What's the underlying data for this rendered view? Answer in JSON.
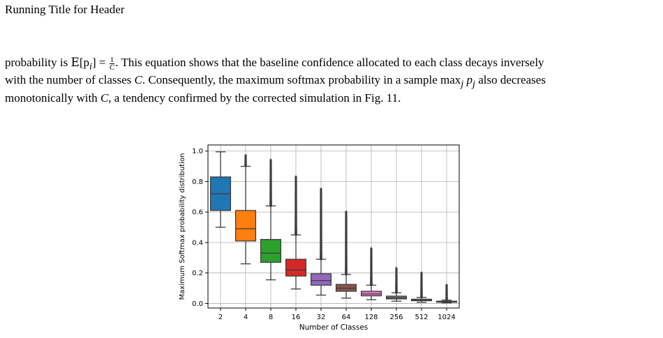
{
  "header": {
    "running_title": "Running Title for Header"
  },
  "paragraph": {
    "l1_prefix": "probability is ",
    "l1_expect": "E",
    "l1_arg": "[p",
    "l1_sub": "i",
    "l1_close": "]",
    "l1_eq": " = ",
    "l1_frac_num": "1",
    "l1_frac_den": "C",
    "l1_suffix": ". This equation shows that the baseline confidence allocated to each class decays inversely",
    "l2_prefix": "with the number of classes ",
    "l2_var": "C",
    "l2_mid": ". Consequently, the maximum softmax probability in a sample ",
    "l2_max": "max",
    "l2_max_sub": "j",
    "l2_p": " p",
    "l2_p_sub": "j",
    "l2_suffix": " also decreases",
    "l3_prefix": "monotonically with ",
    "l3_var": "C",
    "l3_suffix": ", a tendency confirmed by the corrected simulation in Fig. 11."
  },
  "chart_data": {
    "type": "box",
    "xlabel": "Number of Classes",
    "ylabel": "Maximum Softmax probability distribution",
    "ylim": [
      -0.03,
      1.04
    ],
    "yticks": [
      0.0,
      0.2,
      0.4,
      0.6,
      0.8,
      1.0
    ],
    "ytick_labels": [
      "0.0",
      "0.2",
      "0.4",
      "0.6",
      "0.8",
      "1.0"
    ],
    "grid": true,
    "categories": [
      "2",
      "4",
      "8",
      "16",
      "32",
      "64",
      "128",
      "256",
      "512",
      "1024"
    ],
    "boxes": [
      {
        "category": "2",
        "whisker_low": 0.5,
        "q1": 0.61,
        "median": 0.72,
        "q3": 0.83,
        "whisker_high": 0.995,
        "outlier_max": 0.995,
        "color": "#1f77b4"
      },
      {
        "category": "4",
        "whisker_low": 0.26,
        "q1": 0.41,
        "median": 0.49,
        "q3": 0.61,
        "whisker_high": 0.9,
        "outlier_max": 0.97,
        "color": "#ff7f0e"
      },
      {
        "category": "8",
        "whisker_low": 0.155,
        "q1": 0.27,
        "median": 0.33,
        "q3": 0.42,
        "whisker_high": 0.64,
        "outlier_max": 0.94,
        "color": "#2ca02c"
      },
      {
        "category": "16",
        "whisker_low": 0.095,
        "q1": 0.18,
        "median": 0.22,
        "q3": 0.29,
        "whisker_high": 0.45,
        "outlier_max": 0.83,
        "color": "#d62728"
      },
      {
        "category": "32",
        "whisker_low": 0.055,
        "q1": 0.12,
        "median": 0.15,
        "q3": 0.195,
        "whisker_high": 0.29,
        "outlier_max": 0.75,
        "color": "#9467bd"
      },
      {
        "category": "64",
        "whisker_low": 0.035,
        "q1": 0.08,
        "median": 0.1,
        "q3": 0.125,
        "whisker_high": 0.19,
        "outlier_max": 0.6,
        "color": "#8c564b"
      },
      {
        "category": "128",
        "whisker_low": 0.025,
        "q1": 0.05,
        "median": 0.062,
        "q3": 0.08,
        "whisker_high": 0.12,
        "outlier_max": 0.36,
        "color": "#e377c2"
      },
      {
        "category": "256",
        "whisker_low": 0.015,
        "q1": 0.03,
        "median": 0.037,
        "q3": 0.048,
        "whisker_high": 0.07,
        "outlier_max": 0.23,
        "color": "#7f7f7f"
      },
      {
        "category": "512",
        "whisker_low": 0.008,
        "q1": 0.018,
        "median": 0.022,
        "q3": 0.028,
        "whisker_high": 0.04,
        "outlier_max": 0.2,
        "color": "#bcbd22"
      },
      {
        "category": "1024",
        "whisker_low": 0.004,
        "q1": 0.009,
        "median": 0.011,
        "q3": 0.015,
        "whisker_high": 0.022,
        "outlier_max": 0.12,
        "color": "#17becf"
      }
    ]
  }
}
